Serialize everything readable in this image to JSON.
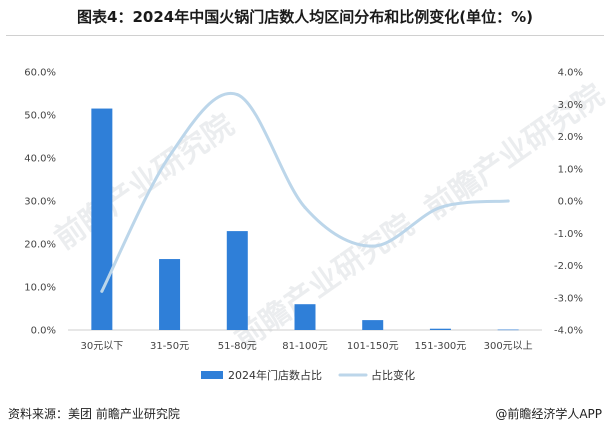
{
  "title": "图表4：2024年中国火锅门店数人均区间分布和比例变化(单位：%)",
  "footer": {
    "source": "资料来源：美团 前瞻产业研究院",
    "brand": "@前瞻经济学人APP"
  },
  "watermark": "前瞻产业研究院",
  "chart_data": {
    "type": "bar",
    "categories": [
      "30元以下",
      "31-50元",
      "51-80元",
      "81-100元",
      "101-150元",
      "151-300元",
      "300元以上"
    ],
    "series": [
      {
        "name": "2024年门店数占比",
        "type": "bar",
        "axis": "left",
        "values": [
          51.5,
          16.5,
          23.0,
          6.0,
          2.3,
          0.3,
          0.1
        ],
        "color": "#2f7fd8"
      },
      {
        "name": "占比变化",
        "type": "line",
        "axis": "right",
        "values": [
          -2.8,
          1.4,
          3.3,
          -0.2,
          -1.4,
          -0.2,
          0.0
        ],
        "color": "#bcd6ea"
      }
    ],
    "yLeft": {
      "ylim": [
        0,
        60
      ],
      "ticks": [
        "0.0%",
        "10.0%",
        "20.0%",
        "30.0%",
        "40.0%",
        "50.0%",
        "60.0%"
      ]
    },
    "yRight": {
      "ylim": [
        -4,
        4
      ],
      "ticks": [
        "-4.0%",
        "-3.0%",
        "-2.0%",
        "-1.0%",
        "0.0%",
        "1.0%",
        "2.0%",
        "3.0%",
        "4.0%"
      ]
    },
    "grid": false,
    "legend": "bottom"
  }
}
